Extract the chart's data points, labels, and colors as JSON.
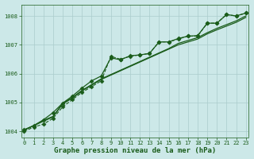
{
  "title": "Graphe pression niveau de la mer (hPa)",
  "background_color": "#cce8e8",
  "grid_color": "#aacccc",
  "line_color": "#1a5c1a",
  "x_ticks": [
    0,
    1,
    2,
    3,
    4,
    5,
    6,
    7,
    8,
    9,
    10,
    11,
    12,
    13,
    14,
    15,
    16,
    17,
    18,
    19,
    20,
    21,
    22,
    23
  ],
  "ylim": [
    1003.8,
    1008.4
  ],
  "yticks": [
    1004,
    1005,
    1006,
    1007,
    1008
  ],
  "series": [
    [
      1004.0,
      1004.15,
      1004.25,
      1004.45,
      1004.85,
      1005.1,
      1005.35,
      1005.55,
      1005.75,
      1006.6,
      1006.5,
      1006.6,
      1006.65,
      1006.7,
      1007.1,
      1007.1,
      1007.2,
      1007.3,
      1007.3,
      1007.75,
      1007.75,
      1008.05,
      1008.0,
      1008.1
    ],
    [
      1004.05,
      1004.2,
      1004.35,
      1004.5,
      1004.95,
      1005.15,
      1005.4,
      1005.6,
      1005.8,
      1005.95,
      1006.1,
      1006.25,
      1006.4,
      1006.55,
      1006.7,
      1006.85,
      1007.0,
      1007.1,
      1007.2,
      1007.38,
      1007.52,
      1007.65,
      1007.78,
      1007.95
    ],
    [
      1004.05,
      1004.2,
      1004.38,
      1004.52,
      1004.97,
      1005.17,
      1005.42,
      1005.62,
      1005.82,
      1005.97,
      1006.12,
      1006.27,
      1006.42,
      1006.57,
      1006.72,
      1006.87,
      1007.05,
      1007.15,
      1007.25,
      1007.42,
      1007.57,
      1007.7,
      1007.83,
      1008.0
    ],
    [
      1004.05,
      1004.2,
      1004.4,
      1004.65,
      1004.98,
      1005.22,
      1005.5,
      1005.75,
      1005.92,
      1006.55,
      1006.48,
      1006.62,
      1006.65,
      1006.7,
      1007.1,
      1007.1,
      1007.22,
      1007.3,
      1007.32,
      1007.75,
      1007.75,
      1008.05,
      1008.0,
      1008.1
    ]
  ],
  "series_styles": [
    {
      "marker": "D",
      "markersize": 2.5,
      "linestyle": "--",
      "linewidth": 0.8
    },
    {
      "marker": null,
      "markersize": 0,
      "linestyle": "-",
      "linewidth": 0.9
    },
    {
      "marker": null,
      "markersize": 0,
      "linestyle": "-",
      "linewidth": 0.9
    },
    {
      "marker": "D",
      "markersize": 2.5,
      "linestyle": "-",
      "linewidth": 0.9
    }
  ],
  "tick_labelsize": 5,
  "xlabel_fontsize": 6.5,
  "figsize": [
    3.2,
    2.0
  ],
  "dpi": 100
}
